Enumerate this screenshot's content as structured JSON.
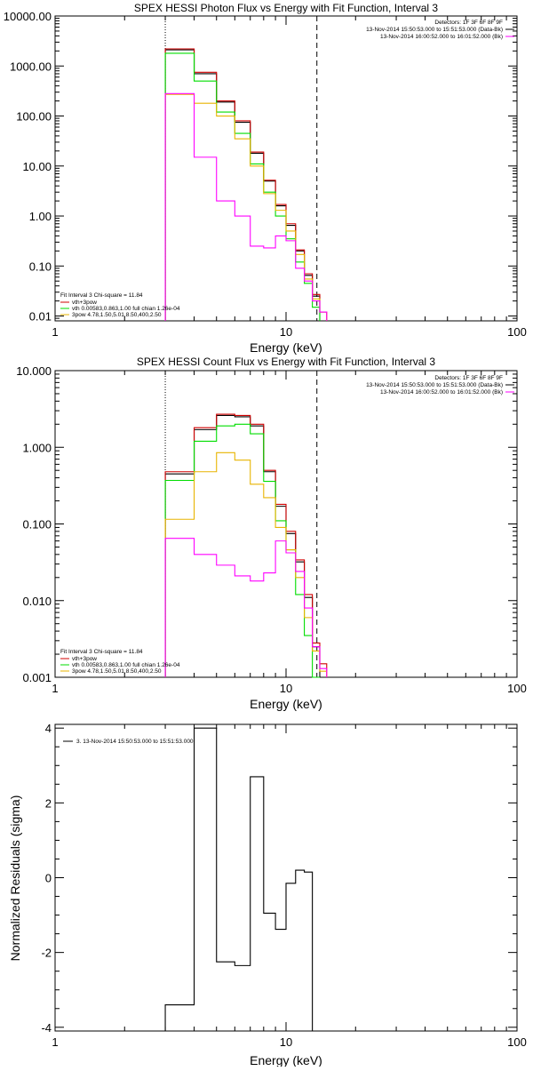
{
  "chart_data": [
    {
      "type": "step-line",
      "title": "SPEX HESSI Photon Flux vs Energy with Fit Function, Interval 3",
      "xlabel": "Energy (keV)",
      "ylabel": "",
      "x_scale": "log",
      "y_scale": "log",
      "xlim": [
        1,
        100
      ],
      "ylim": [
        0.008,
        10000
      ],
      "x_ticks": [
        1,
        10,
        100
      ],
      "x_tick_labels": [
        "1",
        "10",
        "100"
      ],
      "y_ticks": [
        0.01,
        0.1,
        1,
        10,
        100,
        1000,
        10000
      ],
      "y_tick_labels": [
        "0.01",
        "0.10",
        "1.00",
        "10.00",
        "100.00",
        "1000.00",
        "10000.00"
      ],
      "vlines": [
        {
          "x": 3.0,
          "style": "dotted"
        },
        {
          "x": 13.6,
          "style": "dashed"
        }
      ],
      "legend_right": {
        "header": "Detectors: 1F 3F 6F 8F 9F",
        "entries": [
          {
            "text": "13-Nov-2014 15:50:53.000 to 15:51:53.000 (Data-Bk)",
            "color": "#000000"
          },
          {
            "text": "13-Nov-2014 16:00:52.000 to 16:01:52.000 (Bk)",
            "color": "#ff00ff"
          }
        ]
      },
      "legend_left": {
        "header": "Fit Interval 3   Chi-square = 11.84",
        "entries": [
          {
            "text": "vth+3pow",
            "color": "#d00000"
          },
          {
            "text": "vth 0.00583,0.863,1.00  full chian 1.26e-04",
            "color": "#00dd00"
          },
          {
            "text": "3pow 4.78,1.50,5.01,8.50,400,2.50",
            "color": "#e8b400"
          }
        ]
      },
      "bin_edges": [
        3.0,
        3.5,
        4.0,
        4.5,
        5.0,
        5.5,
        6.0,
        6.5,
        7.0,
        7.5,
        8.0,
        8.5,
        9.0,
        9.5,
        10.0,
        11.0,
        12.0,
        13.0,
        14.0,
        15.0,
        16.0
      ],
      "series": [
        {
          "color": "#000000",
          "values": [
            2100,
            2100,
            700,
            700,
            190,
            190,
            75,
            75,
            18,
            18,
            5.0,
            5.0,
            1.6,
            1.6,
            0.65,
            0.2,
            0.065,
            0.025,
            null,
            null
          ]
        },
        {
          "color": "#d00000",
          "values": [
            2200,
            2200,
            750,
            750,
            200,
            200,
            80,
            80,
            19,
            19,
            5.2,
            5.2,
            1.7,
            1.7,
            0.7,
            0.21,
            0.07,
            0.027,
            0.012,
            null
          ]
        },
        {
          "color": "#00dd00",
          "values": [
            1800,
            1800,
            500,
            500,
            120,
            120,
            45,
            45,
            11,
            11,
            3.0,
            3.0,
            1.0,
            1.0,
            0.35,
            0.12,
            0.045,
            0.015,
            null,
            null
          ]
        },
        {
          "color": "#e8b400",
          "values": [
            270,
            270,
            180,
            180,
            100,
            100,
            35,
            35,
            10,
            10,
            2.8,
            2.8,
            1.3,
            1.3,
            0.5,
            0.17,
            0.055,
            0.022,
            0.012,
            null
          ]
        },
        {
          "color": "#ff00ff",
          "values": [
            280,
            280,
            15,
            15,
            2.0,
            2.0,
            1.0,
            1.0,
            0.25,
            0.25,
            0.23,
            0.23,
            0.4,
            0.4,
            0.32,
            0.09,
            0.05,
            0.02,
            0.012,
            null
          ]
        }
      ]
    },
    {
      "type": "step-line",
      "title": "SPEX HESSI Count Flux vs Energy with Fit Function, Interval 3",
      "xlabel": "Energy (keV)",
      "ylabel": "",
      "x_scale": "log",
      "y_scale": "log",
      "xlim": [
        1,
        100
      ],
      "ylim": [
        0.001,
        10
      ],
      "x_ticks": [
        1,
        10,
        100
      ],
      "x_tick_labels": [
        "1",
        "10",
        "100"
      ],
      "y_ticks": [
        0.001,
        0.01,
        0.1,
        1,
        10
      ],
      "y_tick_labels": [
        "0.001",
        "0.010",
        "0.100",
        "1.000",
        "10.000"
      ],
      "vlines": [
        {
          "x": 3.0,
          "style": "dotted"
        },
        {
          "x": 13.6,
          "style": "dashed"
        }
      ],
      "legend_right": {
        "header": "Detectors: 1F 3F 6F 8F 9F",
        "entries": [
          {
            "text": "13-Nov-2014 15:50:53.000 to 15:51:53.000 (Data-Bk)",
            "color": "#000000"
          },
          {
            "text": "13-Nov-2014 16:00:52.000 to 16:01:52.000 (Bk)",
            "color": "#ff00ff"
          }
        ]
      },
      "legend_left": {
        "header": "Fit Interval 3   Chi-square = 11.84",
        "entries": [
          {
            "text": "vth+3pow",
            "color": "#d00000"
          },
          {
            "text": "vth 0.00583,0.863,1.00  full chian 1.26e-04",
            "color": "#00dd00"
          },
          {
            "text": "3pow 4.78,1.50,5.01,8.50,400,2.50",
            "color": "#e8b400"
          }
        ]
      },
      "bin_edges": [
        3.0,
        4.0,
        5.0,
        6.0,
        7.0,
        8.0,
        9.0,
        10.0,
        11.0,
        12.0,
        13.0,
        14.0,
        15.0,
        16.0
      ],
      "series": [
        {
          "color": "#000000",
          "values": [
            0.45,
            1.7,
            2.6,
            2.5,
            1.9,
            0.48,
            0.17,
            0.075,
            0.032,
            0.011,
            0.0025,
            null,
            null
          ]
        },
        {
          "color": "#d00000",
          "values": [
            0.48,
            1.8,
            2.7,
            2.6,
            2.0,
            0.5,
            0.18,
            0.08,
            0.034,
            0.012,
            0.0028,
            0.0015,
            null
          ]
        },
        {
          "color": "#00dd00",
          "values": [
            0.37,
            1.2,
            1.9,
            2.0,
            1.5,
            0.36,
            0.11,
            0.046,
            0.012,
            0.0035,
            0.001,
            null,
            null
          ]
        },
        {
          "color": "#e8b400",
          "values": [
            0.115,
            0.48,
            0.85,
            0.68,
            0.33,
            0.22,
            0.09,
            0.046,
            0.02,
            0.006,
            0.0022,
            0.0012,
            null
          ]
        },
        {
          "color": "#ff00ff",
          "values": [
            0.065,
            0.04,
            0.029,
            0.021,
            0.018,
            0.023,
            0.06,
            0.042,
            0.024,
            0.008,
            0.0025,
            0.0013,
            null
          ]
        }
      ]
    },
    {
      "type": "step-line",
      "title": "",
      "xlabel": "Energy (keV)",
      "ylabel": "Normalized Residuals (sigma)",
      "x_scale": "log",
      "y_scale": "linear",
      "xlim": [
        1,
        100
      ],
      "ylim": [
        -4.1,
        4.1
      ],
      "x_ticks": [
        1,
        10,
        100
      ],
      "x_tick_labels": [
        "1",
        "10",
        "100"
      ],
      "y_ticks": [
        -4,
        -2,
        0,
        2,
        4
      ],
      "y_tick_labels": [
        "-4",
        "-2",
        "0",
        "2",
        "4"
      ],
      "legend": {
        "entries": [
          {
            "text": "3. 13-Nov-2014 15:50:53.000 to 15:51:53.000",
            "color": "#000000"
          }
        ]
      },
      "bin_edges": [
        3.0,
        4.0,
        5.0,
        6.0,
        7.0,
        8.0,
        9.0,
        10.0,
        11.0,
        12.0,
        13.0,
        14.0
      ],
      "series": [
        {
          "color": "#000000",
          "values": [
            -3.4,
            4.0,
            -2.25,
            -2.35,
            2.7,
            -0.95,
            -1.38,
            -0.15,
            0.2,
            0.15,
            null
          ]
        }
      ]
    }
  ]
}
